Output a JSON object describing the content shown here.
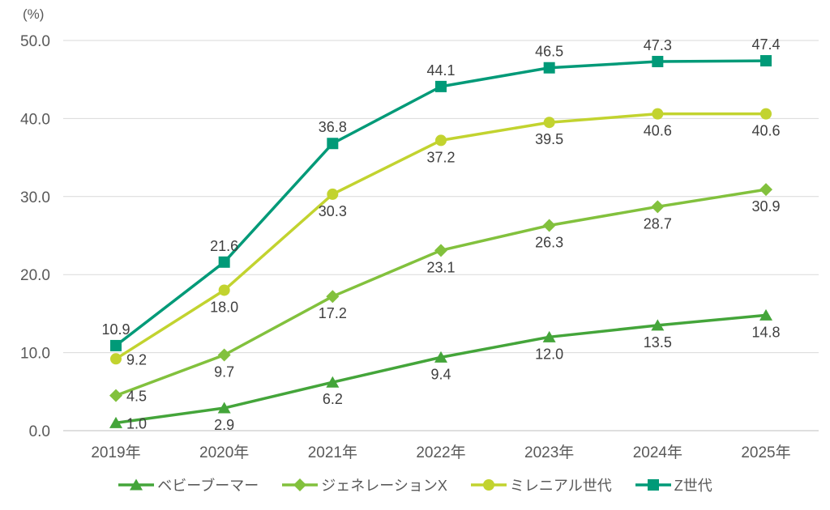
{
  "chart_data": {
    "type": "line",
    "title": "",
    "unit_label": "(%)",
    "categories": [
      "2019年",
      "2020年",
      "2021年",
      "2022年",
      "2023年",
      "2024年",
      "2025年"
    ],
    "series": [
      {
        "name": "ベビーブーマー",
        "marker": "triangle",
        "color": "#44a53a",
        "values": [
          1.0,
          2.9,
          6.2,
          9.4,
          12.0,
          13.5,
          14.8
        ]
      },
      {
        "name": "ジェネレーションX",
        "marker": "diamond",
        "color": "#82c13d",
        "values": [
          4.5,
          9.7,
          17.2,
          23.1,
          26.3,
          28.7,
          30.9
        ]
      },
      {
        "name": "ミレニアル世代",
        "marker": "circle",
        "color": "#c2d32f",
        "values": [
          9.2,
          18.0,
          30.3,
          37.2,
          39.5,
          40.6,
          40.6
        ]
      },
      {
        "name": "Z世代",
        "marker": "square",
        "color": "#009a78",
        "values": [
          10.9,
          21.6,
          36.8,
          44.1,
          46.5,
          47.3,
          47.4
        ]
      }
    ],
    "ylim": [
      0,
      50
    ],
    "ytick_step": 10,
    "ytick_labels": [
      "0.0",
      "10.0",
      "20.0",
      "30.0",
      "40.0",
      "50.0"
    ],
    "grid": true,
    "legend_position": "bottom",
    "axis_text_color": "#595959",
    "data_label_color": "#3f3f3f",
    "gridline_color": "#d9d9d9",
    "zeroline_color": "#bfbfbf"
  }
}
